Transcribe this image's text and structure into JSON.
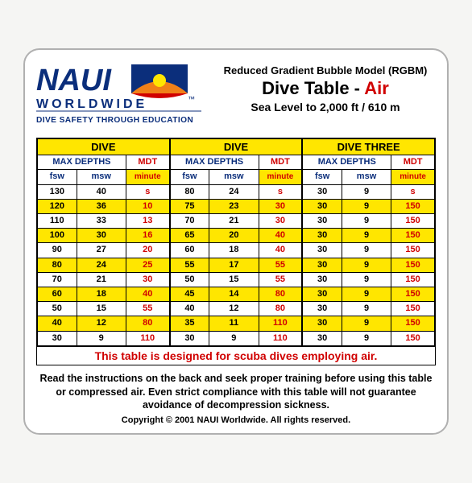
{
  "logo": {
    "name_top": "NAUI",
    "name_bottom": "WORLDWIDE",
    "tagline": "DIVE SAFETY THROUGH EDUCATION",
    "colors": {
      "blue": "#0b2e7b",
      "orange": "#f08018",
      "red": "#d00000",
      "yellow": "#ffe600"
    }
  },
  "header": {
    "subtitle1": "Reduced Gradient Bubble Model (RGBM)",
    "title_pre": "Dive Table - ",
    "title_em": "Air",
    "subtitle2": "Sea Level to 2,000 ft / 610 m"
  },
  "tables": {
    "col_headers": {
      "maxdepths": "MAX DEPTHS",
      "mdt": "MDT",
      "fsw": "fsw",
      "msw": "msw",
      "minute": "minute",
      "s": "s"
    },
    "dive1": {
      "title": "DIVE",
      "rows": [
        {
          "fsw": "130",
          "msw": "40",
          "mdt": "s",
          "band": "white"
        },
        {
          "fsw": "120",
          "msw": "36",
          "mdt": "10",
          "band": "yellow"
        },
        {
          "fsw": "110",
          "msw": "33",
          "mdt": "13",
          "band": "white"
        },
        {
          "fsw": "100",
          "msw": "30",
          "mdt": "16",
          "band": "yellow"
        },
        {
          "fsw": "90",
          "msw": "27",
          "mdt": "20",
          "band": "white"
        },
        {
          "fsw": "80",
          "msw": "24",
          "mdt": "25",
          "band": "yellow"
        },
        {
          "fsw": "70",
          "msw": "21",
          "mdt": "30",
          "band": "white"
        },
        {
          "fsw": "60",
          "msw": "18",
          "mdt": "40",
          "band": "yellow"
        },
        {
          "fsw": "50",
          "msw": "15",
          "mdt": "55",
          "band": "white"
        },
        {
          "fsw": "40",
          "msw": "12",
          "mdt": "80",
          "band": "yellow"
        },
        {
          "fsw": "30",
          "msw": "9",
          "mdt": "110",
          "band": "white"
        }
      ]
    },
    "dive2": {
      "title": "DIVE",
      "rows": [
        {
          "fsw": "80",
          "msw": "24",
          "mdt": "s",
          "band": "white"
        },
        {
          "fsw": "75",
          "msw": "23",
          "mdt": "30",
          "band": "yellow"
        },
        {
          "fsw": "70",
          "msw": "21",
          "mdt": "30",
          "band": "white"
        },
        {
          "fsw": "65",
          "msw": "20",
          "mdt": "40",
          "band": "yellow"
        },
        {
          "fsw": "60",
          "msw": "18",
          "mdt": "40",
          "band": "white"
        },
        {
          "fsw": "55",
          "msw": "17",
          "mdt": "55",
          "band": "yellow"
        },
        {
          "fsw": "50",
          "msw": "15",
          "mdt": "55",
          "band": "white"
        },
        {
          "fsw": "45",
          "msw": "14",
          "mdt": "80",
          "band": "yellow"
        },
        {
          "fsw": "40",
          "msw": "12",
          "mdt": "80",
          "band": "white"
        },
        {
          "fsw": "35",
          "msw": "11",
          "mdt": "110",
          "band": "yellow"
        },
        {
          "fsw": "30",
          "msw": "9",
          "mdt": "110",
          "band": "white"
        }
      ]
    },
    "dive3": {
      "title": "DIVE THREE",
      "rows": [
        {
          "fsw": "30",
          "msw": "9",
          "mdt": "s",
          "band": "white"
        },
        {
          "fsw": "30",
          "msw": "9",
          "mdt": "150",
          "band": "yellow"
        },
        {
          "fsw": "30",
          "msw": "9",
          "mdt": "150",
          "band": "white"
        },
        {
          "fsw": "30",
          "msw": "9",
          "mdt": "150",
          "band": "yellow"
        },
        {
          "fsw": "30",
          "msw": "9",
          "mdt": "150",
          "band": "white"
        },
        {
          "fsw": "30",
          "msw": "9",
          "mdt": "150",
          "band": "yellow"
        },
        {
          "fsw": "30",
          "msw": "9",
          "mdt": "150",
          "band": "white"
        },
        {
          "fsw": "30",
          "msw": "9",
          "mdt": "150",
          "band": "yellow"
        },
        {
          "fsw": "30",
          "msw": "9",
          "mdt": "150",
          "band": "white"
        },
        {
          "fsw": "30",
          "msw": "9",
          "mdt": "150",
          "band": "yellow"
        },
        {
          "fsw": "30",
          "msw": "9",
          "mdt": "150",
          "band": "white"
        }
      ]
    }
  },
  "designed": "This table is designed for scuba dives employing air.",
  "instructions": "Read the instructions on the back and seek proper training before using this table or compressed air. Even strict compliance with this table will not guarantee avoidance of decompression sickness.",
  "copyright": "Copyright © 2001 NAUI Worldwide.  All rights reserved."
}
